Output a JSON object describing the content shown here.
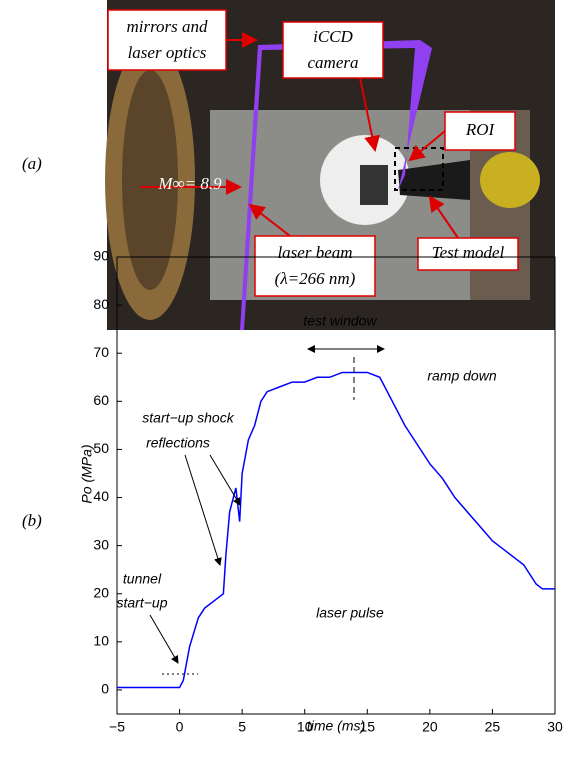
{
  "photo": {
    "panel_label": "(a)",
    "annotations": {
      "mirrors": [
        "mirrors and",
        "laser optics"
      ],
      "camera": [
        "iCCD",
        "camera"
      ],
      "roi": [
        "ROI"
      ],
      "mach": [
        "M∞= 8.9"
      ],
      "beam": [
        "laser beam",
        "(λ=266 nm)"
      ],
      "model": [
        "Test model"
      ]
    }
  },
  "chart_data": {
    "type": "line",
    "panel_label": "(b)",
    "xlabel": "time (ms)",
    "ylabel": "Po (MPa)",
    "color": "#0000ff",
    "x": [
      -5,
      -1,
      0,
      0.3,
      0.8,
      1.5,
      2,
      3,
      3.5,
      3.7,
      4,
      4.5,
      4.8,
      5,
      5.5,
      6,
      6.5,
      7,
      8,
      9,
      10,
      11,
      12,
      13,
      14,
      15,
      16,
      17,
      18,
      19,
      20,
      21,
      22,
      23,
      24,
      25,
      26,
      27,
      27.5,
      28,
      28.5,
      29,
      30
    ],
    "values": [
      0.5,
      0.5,
      0.5,
      2,
      9,
      15,
      17,
      19,
      20,
      28,
      37,
      42,
      35,
      45,
      52,
      55,
      60,
      62,
      63,
      64,
      64,
      65,
      65,
      66,
      66,
      66,
      65,
      60,
      55,
      51,
      47,
      44,
      40,
      37,
      34,
      31,
      29,
      27,
      26,
      24,
      22,
      21,
      21
    ],
    "xlim": [
      -5,
      30
    ],
    "ylim": [
      -5,
      90
    ],
    "xticks": [
      {
        "value": -5,
        "label": "−5"
      },
      0,
      5,
      10,
      15,
      20,
      25,
      30
    ],
    "yticks": [
      0,
      10,
      20,
      30,
      40,
      50,
      60,
      70,
      80,
      90
    ],
    "annotations": [
      "test window",
      "laser pulse",
      "ramp down",
      "start−up shock",
      "reflections",
      "tunnel",
      "start−up"
    ]
  }
}
